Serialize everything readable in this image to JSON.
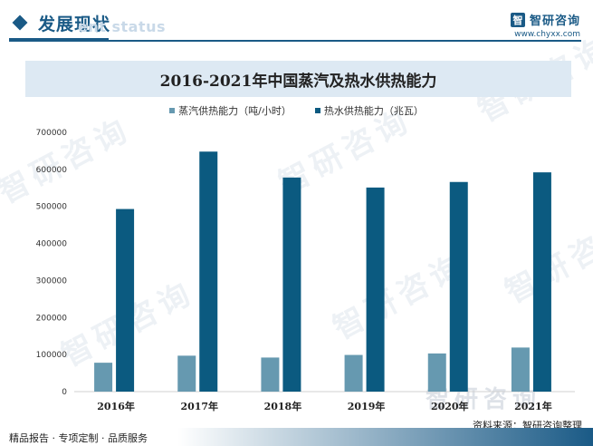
{
  "header": {
    "section_title": "发展现状",
    "section_subtitle": "ent status",
    "brand_logo": "智",
    "brand_name": "智研咨询",
    "brand_url": "www.chyxx.com"
  },
  "watermark": {
    "text": "智研咨询"
  },
  "chart_data": {
    "type": "bar",
    "title": "2016-2021年中国蒸汽及热水供热能力",
    "categories": [
      "2016年",
      "2017年",
      "2018年",
      "2019年",
      "2020年",
      "2021年"
    ],
    "series": [
      {
        "name": "蒸汽供热能力（吨/小时）",
        "color": "#6699b0",
        "values": [
          78000,
          97000,
          92000,
          99000,
          103000,
          119000
        ]
      },
      {
        "name": "热水供热能力（兆瓦）",
        "color": "#0b5a80",
        "values": [
          493000,
          648000,
          578000,
          551000,
          566000,
          592000
        ]
      }
    ],
    "ylim": [
      0,
      700000
    ],
    "yticks": [
      "0",
      "100000",
      "200000",
      "300000",
      "400000",
      "500000",
      "600000",
      "700000"
    ],
    "xlabel": "",
    "ylabel": "",
    "legend_position": "top-center",
    "grid": false
  },
  "footer": {
    "source": "资料来源：智研咨询整理",
    "services": "精品报告 · 专项定制 · 品质服务"
  }
}
